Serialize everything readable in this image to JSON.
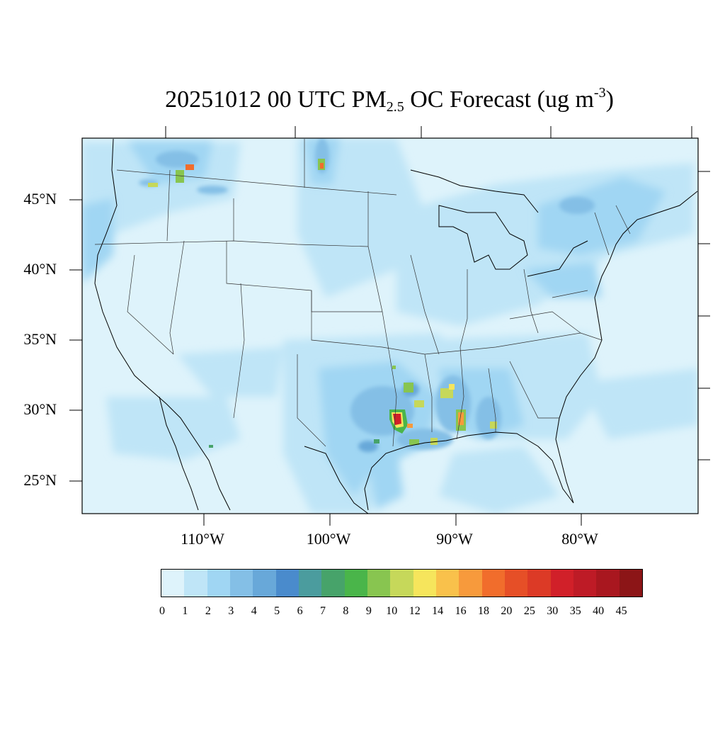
{
  "title": {
    "prefix": "20251012 00 UTC PM",
    "subscript": "2.5",
    "middle": " OC Forecast (ug m",
    "superscript": "-3",
    "suffix": ")"
  },
  "lat_labels": [
    "45°N",
    "40°N",
    "35°N",
    "30°N",
    "25°N"
  ],
  "lon_labels": [
    "110°W",
    "100°W",
    "90°W",
    "80°W"
  ],
  "colorbar": {
    "labels": [
      "0",
      "1",
      "2",
      "3",
      "4",
      "5",
      "6",
      "7",
      "8",
      "9",
      "10",
      "12",
      "14",
      "16",
      "18",
      "20",
      "25",
      "30",
      "35",
      "40",
      "45"
    ],
    "colors": [
      "#def3fb",
      "#bfe5f7",
      "#a0d6f3",
      "#84bfe6",
      "#68a8d9",
      "#4a8bcc",
      "#4b9c9e",
      "#47a36a",
      "#4ab54a",
      "#88c550",
      "#c6d85a",
      "#f6e55c",
      "#f9c14b",
      "#f79a3c",
      "#f16d2c",
      "#e64f27",
      "#dc3a26",
      "#d12029",
      "#be1b26",
      "#a9171f",
      "#8c1517"
    ]
  },
  "field_colors": {
    "background": "#def3fb",
    "light": "#bfe5f7",
    "medium": "#a0d6f3",
    "blue": "#84bfe6",
    "dark_blue": "#68a8d9"
  }
}
